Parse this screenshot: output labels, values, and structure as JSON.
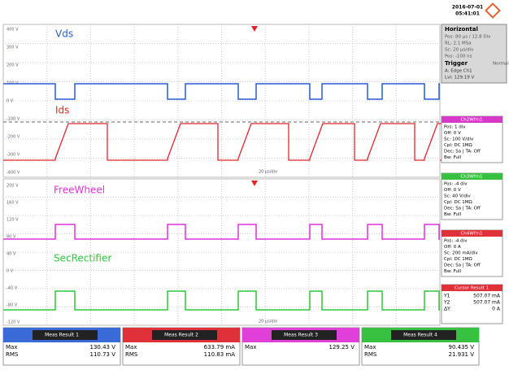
{
  "header": {
    "date": "2016-07-01",
    "time": "05:41:01"
  },
  "channels": [
    {
      "label": "Vds",
      "color": "#2a5cd6"
    },
    {
      "label": "Ids",
      "color": "#e0262c"
    },
    {
      "label": "FreeWheel",
      "color": "#e030d8"
    },
    {
      "label": "SecRectifier",
      "color": "#2ec83a"
    }
  ],
  "axis": {
    "upper": [
      "400 V",
      "300 V",
      "200 V",
      "100 V",
      "0 V",
      "-100 V",
      "-200 V",
      "-300 V",
      "-400 V"
    ],
    "lower": [
      "200 V",
      "160 V",
      "120 V",
      "80 V",
      "40 V",
      "0 V",
      "-40 V",
      "-80 V",
      "-120 V"
    ]
  },
  "timebase": [
    "20 µs/div",
    "20 µs/div"
  ],
  "horizontal": {
    "title": "Horizontal",
    "lines": [
      "Pos: 80 µs / 12.8 Div",
      "RL: 2.1 MSa",
      "Sc: 20 µs/div",
      "Pos: -100 ns"
    ]
  },
  "trigger": {
    "title": "Trigger",
    "mode": "Normal",
    "lines": [
      "A:  Edge  Ch1",
      "Lvl: 129.19 V"
    ]
  },
  "panels": [
    {
      "title": "Ch2Wfm1",
      "color": "#d838c8",
      "lines": [
        "Pos: 1 div",
        "Off: 0 V",
        "Sc: 100 V/div",
        "Cpl: DC 1MΩ",
        "Dec: Sa | TA: Off",
        "Bw: Full"
      ]
    },
    {
      "title": "Ch3Wfm1",
      "color": "#38c040",
      "lines": [
        "Pos: -4 div",
        "Off: 0 V",
        "Sc: 40 V/div",
        "Cpl: DC 1MΩ",
        "Dec: Sa | TA: Off",
        "Bw: Full"
      ]
    },
    {
      "title": "Ch4Wfm1",
      "color": "#e0303a",
      "lines": [
        "Pos: -4 div",
        "Off: 0 A",
        "Sc: 200 mA/div",
        "Cpl: DC 1MΩ",
        "Dec: Sa | TA: Off",
        "Bw: Full"
      ]
    }
  ],
  "cursor": {
    "title": "Cursor Result 1",
    "rows": [
      [
        "Y1",
        "507.07 mA"
      ],
      [
        "Y2",
        "507.07 mA"
      ],
      [
        "ΔY",
        "0 A"
      ]
    ]
  },
  "meas": [
    {
      "title": "Meas Result 1",
      "color": "#3a6ad8",
      "rows": [
        [
          "Max",
          "130.43 V"
        ],
        [
          "RMS",
          "110.73 V"
        ]
      ]
    },
    {
      "title": "Meas Result 2",
      "color": "#e0303a",
      "rows": [
        [
          "Max",
          "633.79 mA"
        ],
        [
          "RMS",
          "110.83 mA"
        ]
      ]
    },
    {
      "title": "Meas Result 3",
      "color": "#e040d8",
      "rows": [
        [
          "Max",
          "129.25 V"
        ]
      ]
    },
    {
      "title": "Meas Result 4",
      "color": "#38c040",
      "rows": [
        [
          "Max",
          "90.435 V"
        ],
        [
          "RMS",
          "21.931 V"
        ]
      ]
    }
  ]
}
